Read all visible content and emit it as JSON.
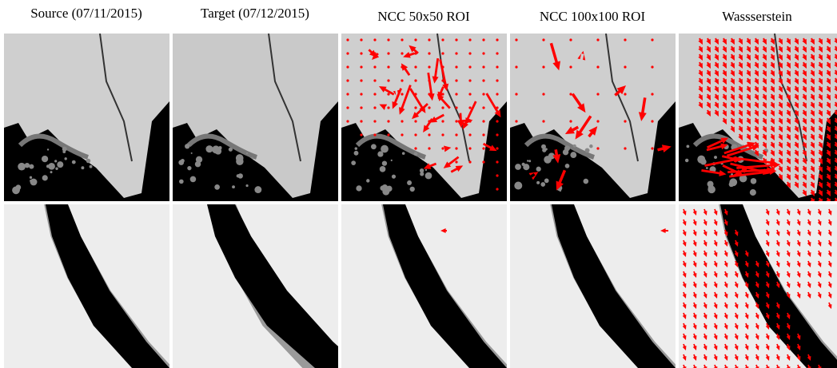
{
  "columns": [
    {
      "title": "Source (07/11/2015)"
    },
    {
      "title": "Target (07/12/2015)"
    },
    {
      "title": "NCC 50x50 ROI"
    },
    {
      "title": "NCC 100x100 ROI"
    },
    {
      "title": "Wassserstein"
    }
  ]
}
